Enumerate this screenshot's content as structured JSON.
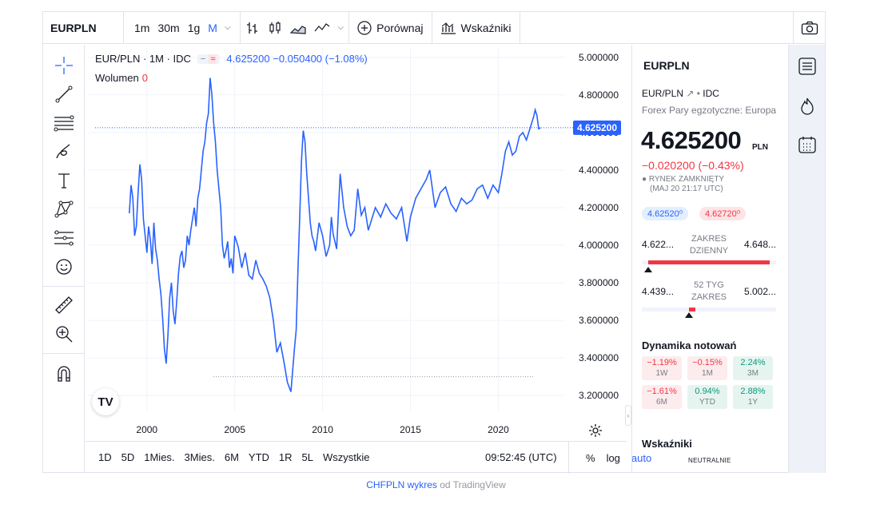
{
  "toolbar": {
    "symbol": "EURPLN",
    "intervals": [
      "1m",
      "30m",
      "1g",
      "M"
    ],
    "active_interval": "M",
    "compare_label": "Porównaj",
    "indicators_label": "Wskaźniki",
    "icons": [
      "bars-icon",
      "candles-icon",
      "area-icon",
      "line-icon",
      "camera-icon"
    ]
  },
  "left_tools": [
    "crosshair-icon",
    "trendline-icon",
    "fib-icon",
    "brush-icon",
    "text-icon",
    "pattern-icon",
    "forecast-icon",
    "emoji-icon",
    "ruler-icon",
    "zoom-icon",
    "magnet-icon"
  ],
  "legend": {
    "title": "EUR/PLN · 1M · IDC",
    "pill_a": "−",
    "pill_b": "≈",
    "values": "4.625200 −0.050400 (−1.08%)",
    "volume_label": "Wolumen",
    "volume_value": "0"
  },
  "chart_data": {
    "type": "line",
    "title": "EUR/PLN · 1M · IDC",
    "xlabel": "",
    "ylabel": "",
    "x_ticks": [
      "2000",
      "2005",
      "2010",
      "2015",
      "2020"
    ],
    "y_ticks": [
      "5.000000",
      "4.800000",
      "4.600000",
      "4.400000",
      "4.200000",
      "4.000000",
      "3.800000",
      "3.600000",
      "3.400000",
      "3.200000"
    ],
    "ylim": [
      3.12,
      5.05
    ],
    "xlim": [
      1996.6,
      2023.8
    ],
    "last_price_label": "4.625200",
    "last_price": 4.6252,
    "low_line": 3.3,
    "grid": true,
    "line_color": "#2962ff",
    "series": [
      {
        "x": [
          1999.0,
          1999.1,
          1999.2,
          1999.3,
          1999.4,
          1999.5,
          1999.6,
          1999.7,
          1999.8,
          1999.9,
          2000.0,
          2000.1,
          2000.2,
          2000.3,
          2000.4,
          2000.5,
          2000.6,
          2000.7,
          2000.8,
          2000.9,
          2001.0,
          2001.1,
          2001.2,
          2001.3,
          2001.4,
          2001.5,
          2001.6,
          2001.7,
          2001.8,
          2001.9,
          2002.0,
          2002.1,
          2002.2,
          2002.3,
          2002.4,
          2002.5,
          2002.6,
          2002.7,
          2002.8,
          2002.9,
          2003.0,
          2003.1,
          2003.2,
          2003.3,
          2003.4,
          2003.5,
          2003.6,
          2003.7,
          2003.8,
          2003.9,
          2004.0,
          2004.1,
          2004.2,
          2004.3,
          2004.4,
          2004.5,
          2004.6,
          2004.7,
          2004.8,
          2004.9,
          2005.0,
          2005.2,
          2005.4,
          2005.6,
          2005.8,
          2006.0,
          2006.2,
          2006.4,
          2006.6,
          2006.8,
          2007.0,
          2007.2,
          2007.4,
          2007.6,
          2007.8,
          2008.0,
          2008.2,
          2008.4,
          2008.5,
          2008.6,
          2008.7,
          2008.8,
          2008.9,
          2009.0,
          2009.1,
          2009.2,
          2009.3,
          2009.4,
          2009.5,
          2009.6,
          2009.8,
          2010.0,
          2010.2,
          2010.4,
          2010.5,
          2010.6,
          2010.8,
          2011.0,
          2011.2,
          2011.4,
          2011.6,
          2011.8,
          2012.0,
          2012.2,
          2012.4,
          2012.6,
          2012.8,
          2013.0,
          2013.3,
          2013.6,
          2013.9,
          2014.2,
          2014.5,
          2014.8,
          2015.0,
          2015.3,
          2015.6,
          2015.9,
          2016.1,
          2016.4,
          2016.7,
          2017.0,
          2017.3,
          2017.6,
          2017.9,
          2018.2,
          2018.5,
          2018.8,
          2019.1,
          2019.4,
          2019.7,
          2020.0,
          2020.2,
          2020.4,
          2020.6,
          2020.8,
          2021.0,
          2021.2,
          2021.4,
          2021.6,
          2021.8,
          2022.0,
          2022.1,
          2022.2,
          2022.3,
          2022.4
        ],
        "y": [
          4.17,
          4.32,
          4.25,
          4.05,
          4.1,
          4.28,
          4.43,
          4.35,
          4.14,
          4.05,
          3.96,
          4.1,
          4.03,
          3.9,
          4.12,
          3.98,
          3.92,
          3.82,
          3.74,
          3.61,
          3.45,
          3.37,
          3.52,
          3.72,
          3.8,
          3.65,
          3.58,
          3.7,
          3.85,
          3.94,
          3.97,
          3.88,
          3.92,
          4.05,
          4.0,
          4.08,
          4.14,
          4.2,
          4.1,
          4.25,
          4.3,
          4.4,
          4.5,
          4.55,
          4.65,
          4.7,
          4.89,
          4.8,
          4.65,
          4.55,
          4.4,
          4.3,
          4.2,
          4.0,
          3.93,
          3.97,
          4.02,
          3.88,
          3.93,
          3.85,
          4.05,
          3.99,
          3.88,
          3.96,
          3.84,
          3.82,
          3.92,
          3.85,
          3.82,
          3.78,
          3.72,
          3.6,
          3.43,
          3.48,
          3.38,
          3.27,
          3.22,
          3.45,
          3.55,
          3.87,
          4.15,
          4.45,
          4.61,
          4.55,
          4.38,
          4.25,
          4.12,
          4.05,
          4.02,
          3.97,
          4.12,
          4.05,
          3.94,
          4.0,
          4.15,
          4.06,
          3.98,
          4.38,
          4.2,
          4.1,
          4.05,
          4.08,
          4.3,
          4.16,
          4.2,
          4.08,
          4.14,
          4.2,
          4.15,
          4.22,
          4.17,
          4.14,
          4.2,
          4.02,
          4.15,
          4.25,
          4.3,
          4.35,
          4.4,
          4.2,
          4.28,
          4.31,
          4.22,
          4.18,
          4.25,
          4.22,
          4.24,
          4.3,
          4.32,
          4.25,
          4.32,
          4.28,
          4.38,
          4.5,
          4.55,
          4.48,
          4.5,
          4.58,
          4.6,
          4.56,
          4.62,
          4.68,
          4.72,
          4.69,
          4.62,
          4.625
        ]
      }
    ]
  },
  "range_bar": {
    "ranges": [
      "1D",
      "5D",
      "1Mies.",
      "3Mies.",
      "6M",
      "YTD",
      "1R",
      "5L",
      "Wszystkie"
    ],
    "time": "09:52:45 (UTC)",
    "percent": "%",
    "log": "log",
    "auto": "auto"
  },
  "symbol_info": {
    "symbol": "EURPLN",
    "exchange_pair": "EUR/PLN",
    "exchange_source": "IDC",
    "category": "Forex Pary egzotyczne: Europa",
    "price": "4.625200",
    "currency": "PLN",
    "change": "−0.020200 (−0.43%)",
    "market_status": "RYNEK ZAMKNIĘTY",
    "market_time": "(MAJ 20 21:17 UTC)",
    "bid": "4.62520⁰",
    "ask": "4.62720⁰",
    "daily_range": {
      "label": "ZAKRES DZIENNY",
      "low": "4.622...",
      "high": "4.648...",
      "position": 0.05
    },
    "week52_range": {
      "label": "52 TYG ZAKRES",
      "low": "4.439...",
      "high": "5.002...",
      "position": 0.35
    },
    "performance_title": "Dynamika notowań",
    "performance": [
      {
        "value": "−1.19%",
        "label": "1W",
        "sign": "neg"
      },
      {
        "value": "−0.15%",
        "label": "1M",
        "sign": "neg"
      },
      {
        "value": "2.24%",
        "label": "3M",
        "sign": "pos"
      },
      {
        "value": "−1.61%",
        "label": "6M",
        "sign": "neg"
      },
      {
        "value": "0.94%",
        "label": "YTD",
        "sign": "pos"
      },
      {
        "value": "2.88%",
        "label": "1Y",
        "sign": "pos"
      }
    ],
    "indicators_title": "Wskaźniki",
    "neutral": "NEUTRALNIE"
  },
  "sidebar_icons": [
    "watchlist-icon",
    "hotlist-icon",
    "calendar-icon"
  ],
  "footer": {
    "link": "CHFPLN wykres",
    "text": " od TradingView"
  },
  "colors": {
    "accent": "#2962ff",
    "negative": "#f23645",
    "positive": "#089981"
  }
}
